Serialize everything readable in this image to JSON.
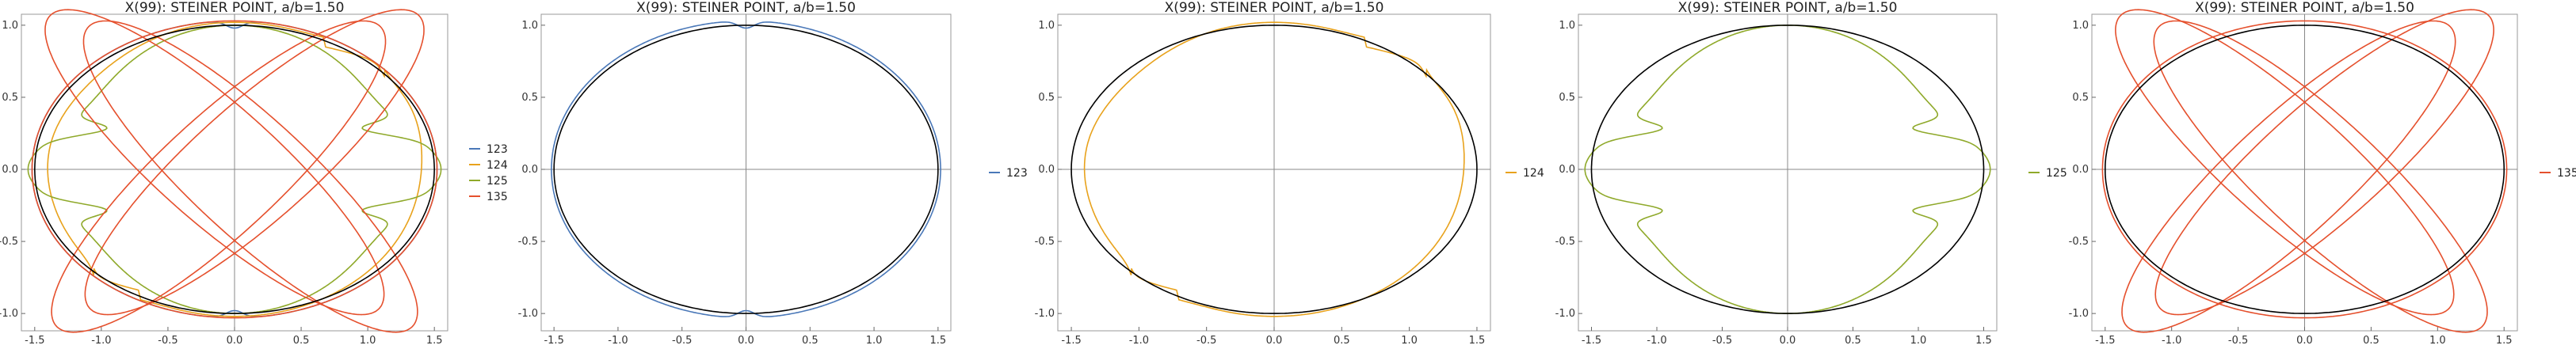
{
  "colors": {
    "ellipse": "#000000",
    "123": "#4a78b8",
    "124": "#e8a21c",
    "125": "#8fa92a",
    "135": "#e5502d",
    "axes": "#888888",
    "frame": "#999999"
  },
  "chart_data": [
    {
      "type": "line",
      "title": "X(99): STEINER POINT, a/b=1.50",
      "xlim": [
        -1.6,
        1.6
      ],
      "ylim": [
        -1.12,
        1.12
      ],
      "xticks": [
        "-1.5",
        "-1.0",
        "-0.5",
        "0.0",
        "0.5",
        "1.0",
        "1.5"
      ],
      "yticks": [
        "-1.0",
        "-0.5",
        "0.0",
        "0.5",
        "1.0"
      ],
      "legend_position": "right",
      "series": [
        {
          "name": "123",
          "color": "#4a78b8",
          "shape": "bean",
          "params": {
            "A": 1.52,
            "B": 1.03
          }
        },
        {
          "name": "124",
          "color": "#e8a21c",
          "shape": "wobble",
          "params": {
            "A": 1.45,
            "B": 1.02
          }
        },
        {
          "name": "125",
          "color": "#8fa92a",
          "shape": "cusp",
          "params": {
            "A": 1.5,
            "B": 1.0
          }
        },
        {
          "name": "135",
          "color": "#e5502d",
          "shape": "lemniscate",
          "params": {
            "A": 1.52,
            "B": 1.03
          }
        }
      ]
    },
    {
      "type": "line",
      "title": "X(99): STEINER POINT, a/b=1.50",
      "xlim": [
        -1.6,
        1.6
      ],
      "ylim": [
        -1.12,
        1.12
      ],
      "xticks": [
        "-1.5",
        "-1.0",
        "-0.5",
        "0.0",
        "0.5",
        "1.0",
        "1.5"
      ],
      "yticks": [
        "-1.0",
        "-0.5",
        "0.0",
        "0.5",
        "1.0"
      ],
      "legend_position": "right",
      "series": [
        {
          "name": "123",
          "color": "#4a78b8",
          "shape": "bean",
          "params": {
            "A": 1.52,
            "B": 1.03
          }
        }
      ]
    },
    {
      "type": "line",
      "title": "X(99): STEINER POINT, a/b=1.50",
      "xlim": [
        -1.6,
        1.6
      ],
      "ylim": [
        -1.12,
        1.12
      ],
      "xticks": [
        "-1.5",
        "-1.0",
        "-0.5",
        "0.0",
        "0.5",
        "1.0",
        "1.5"
      ],
      "yticks": [
        "-1.0",
        "-0.5",
        "0.0",
        "0.5",
        "1.0"
      ],
      "legend_position": "right",
      "series": [
        {
          "name": "124",
          "color": "#e8a21c",
          "shape": "wobble",
          "params": {
            "A": 1.45,
            "B": 1.02
          }
        }
      ]
    },
    {
      "type": "line",
      "title": "X(99): STEINER POINT, a/b=1.50",
      "xlim": [
        -1.6,
        1.6
      ],
      "ylim": [
        -1.12,
        1.12
      ],
      "xticks": [
        "-1.5",
        "-1.0",
        "-0.5",
        "0.0",
        "0.5",
        "1.0",
        "1.5"
      ],
      "yticks": [
        "-1.0",
        "-0.5",
        "0.0",
        "0.5",
        "1.0"
      ],
      "legend_position": "right",
      "series": [
        {
          "name": "125",
          "color": "#8fa92a",
          "shape": "cusp",
          "params": {
            "A": 1.5,
            "B": 1.0
          }
        }
      ]
    },
    {
      "type": "line",
      "title": "X(99): STEINER POINT, a/b=1.50",
      "xlim": [
        -1.6,
        1.6
      ],
      "ylim": [
        -1.12,
        1.12
      ],
      "xticks": [
        "-1.5",
        "-1.0",
        "-0.5",
        "0.0",
        "0.5",
        "1.0",
        "1.5"
      ],
      "yticks": [
        "-1.0",
        "-0.5",
        "0.0",
        "0.5",
        "1.0"
      ],
      "legend_position": "right",
      "series": [
        {
          "name": "135",
          "color": "#e5502d",
          "shape": "lemniscate",
          "params": {
            "A": 1.52,
            "B": 1.03
          }
        }
      ]
    }
  ],
  "reference_ellipse": {
    "a": 1.5,
    "b": 1.0
  }
}
